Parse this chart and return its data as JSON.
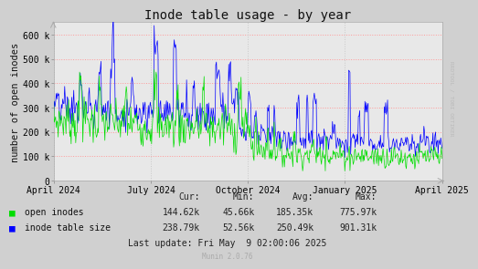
{
  "title": "Inode table usage - by year",
  "ylabel": "number of open inodes",
  "fig_bg": "#d0d0d0",
  "plot_bg": "#e8e8e8",
  "ylim": [
    0,
    650000
  ],
  "yticks": [
    0,
    100000,
    200000,
    300000,
    400000,
    500000,
    600000
  ],
  "ytick_labels": [
    "0",
    "100 k",
    "200 k",
    "300 k",
    "400 k",
    "500 k",
    "600 k"
  ],
  "xtick_positions": [
    0.0,
    0.25,
    0.5,
    0.75,
    1.0
  ],
  "xtick_labels": [
    "April 2024",
    "July 2024",
    "October 2024",
    "January 2025",
    "April 2025"
  ],
  "line1_color": "#00dd00",
  "line1_label": "open inodes",
  "line2_color": "#0000ff",
  "line2_label": "inode table size",
  "hgrid_color": "#ff9999",
  "vgrid_color": "#c8c8c8",
  "stats_header": [
    "Cur:",
    "Min:",
    "Avg:",
    "Max:"
  ],
  "stats_row1": [
    "144.62k",
    "45.66k",
    "185.35k",
    "775.97k"
  ],
  "stats_row2": [
    "238.79k",
    "52.56k",
    "250.49k",
    "901.31k"
  ],
  "last_update": "Last update: Fri May  9 02:00:06 2025",
  "munin_version": "Munin 2.0.76",
  "rrdtool_label": "RRDTOOL / TOBI OETIKER",
  "title_fontsize": 10,
  "ylabel_fontsize": 7.5,
  "tick_fontsize": 7,
  "stats_fontsize": 7,
  "munin_fontsize": 5.5
}
